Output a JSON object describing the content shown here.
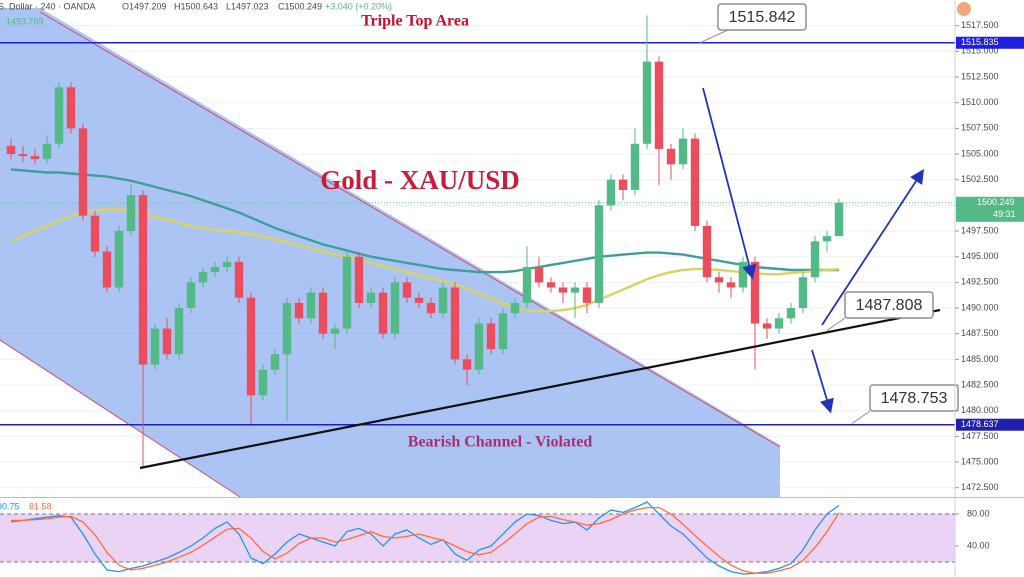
{
  "header": {
    "symbol": "S. Dollar · 240 · OANDA",
    "open": "O1497.209",
    "high": "H1500.643",
    "low": "L1497.023",
    "close": "C1500.249",
    "change": "+3.040 (+0.20%)",
    "prev_label": "1493.769"
  },
  "chart_data": [
    {
      "type": "candlestick",
      "title": "Gold - XAU/USD",
      "open": [
        1505.8,
        1505.0,
        1504.8,
        1504.5,
        1506.0,
        1511.5,
        1507.5,
        1499.0,
        1495.5,
        1492.0,
        1497.5,
        1501.0,
        1484.5,
        1488.0,
        1485.5,
        1490.0,
        1492.5,
        1493.5,
        1494.0,
        1494.5,
        1491.0,
        1481.5,
        1484.0,
        1485.5,
        1490.5,
        1489.0,
        1491.5,
        1487.5,
        1488.0,
        1495.0,
        1490.5,
        1491.5,
        1487.5,
        1492.5,
        1491.0,
        1490.5,
        1489.5,
        1492.0,
        1485.0,
        1484.0,
        1488.5,
        1486.0,
        1489.5,
        1490.5,
        1494.0,
        1492.5,
        1492.0,
        1491.5,
        1492.0,
        1490.5,
        1500.0,
        1502.5,
        1501.5,
        1506.0,
        1514.0,
        1505.5,
        1504.0,
        1506.5,
        1498.0,
        1493.0,
        1492.5,
        1492.0,
        1494.5,
        1488.5,
        1488.0,
        1489.0,
        1490.0,
        1493.0,
        1496.5,
        1497.0
      ],
      "high": [
        1506.5,
        1505.8,
        1505.5,
        1506.8,
        1512.0,
        1512.0,
        1508.0,
        1499.5,
        1496.0,
        1498.0,
        1502.0,
        1501.5,
        1488.5,
        1489.0,
        1490.5,
        1493.0,
        1494.0,
        1494.5,
        1495.0,
        1495.0,
        1491.5,
        1484.5,
        1486.0,
        1491.0,
        1491.0,
        1492.0,
        1492.0,
        1488.5,
        1495.5,
        1495.5,
        1492.0,
        1492.0,
        1493.0,
        1493.0,
        1491.5,
        1491.0,
        1492.5,
        1492.5,
        1485.5,
        1489.0,
        1489.0,
        1490.0,
        1491.0,
        1496.0,
        1495.0,
        1493.0,
        1492.5,
        1492.5,
        1492.5,
        1500.5,
        1503.0,
        1503.0,
        1507.5,
        1518.5,
        1514.5,
        1506.0,
        1507.5,
        1507.0,
        1498.5,
        1493.5,
        1493.0,
        1495.0,
        1495.0,
        1489.0,
        1489.5,
        1490.5,
        1493.5,
        1497.0,
        1497.5,
        1500.643
      ],
      "low": [
        1504.5,
        1504.2,
        1504.0,
        1504.0,
        1505.5,
        1507.0,
        1498.5,
        1495.0,
        1491.5,
        1491.5,
        1497.0,
        1474.5,
        1484.0,
        1485.0,
        1485.0,
        1489.5,
        1492.0,
        1493.0,
        1493.5,
        1490.5,
        1478.7,
        1481.0,
        1483.5,
        1479.0,
        1488.5,
        1488.5,
        1487.0,
        1486.0,
        1487.5,
        1490.0,
        1490.0,
        1487.0,
        1487.0,
        1490.5,
        1490.0,
        1489.0,
        1489.0,
        1484.5,
        1482.5,
        1483.5,
        1485.5,
        1485.5,
        1489.0,
        1490.0,
        1492.0,
        1491.5,
        1490.5,
        1489.0,
        1489.5,
        1490.0,
        1499.5,
        1500.5,
        1501.0,
        1505.5,
        1502.0,
        1502.5,
        1503.5,
        1497.5,
        1492.5,
        1491.5,
        1491.0,
        1491.5,
        1484.0,
        1487.0,
        1487.5,
        1488.5,
        1489.5,
        1492.5,
        1495.5,
        1497.023
      ],
      "close": [
        1505.0,
        1504.8,
        1504.5,
        1506.0,
        1511.5,
        1507.5,
        1499.0,
        1495.5,
        1492.0,
        1497.5,
        1501.0,
        1484.5,
        1488.0,
        1485.5,
        1490.0,
        1492.5,
        1493.5,
        1494.0,
        1494.5,
        1491.0,
        1481.5,
        1484.0,
        1485.5,
        1490.5,
        1489.0,
        1491.5,
        1487.5,
        1488.0,
        1495.0,
        1490.5,
        1491.5,
        1487.5,
        1492.5,
        1491.0,
        1490.5,
        1489.5,
        1492.0,
        1485.0,
        1484.0,
        1488.5,
        1486.0,
        1489.5,
        1490.5,
        1494.0,
        1492.5,
        1492.0,
        1491.5,
        1492.0,
        1490.5,
        1500.0,
        1502.5,
        1501.5,
        1506.0,
        1514.0,
        1505.5,
        1504.0,
        1506.5,
        1498.0,
        1493.0,
        1492.5,
        1492.0,
        1494.5,
        1488.5,
        1488.0,
        1489.0,
        1490.0,
        1493.0,
        1496.5,
        1497.0,
        1500.249
      ],
      "up_color": "#53b987",
      "down_color": "#eb4d5c",
      "overlays": [
        {
          "color": "#3f9e9a",
          "values": [
            1503.5,
            1503.4,
            1503.3,
            1503.2,
            1503.2,
            1503.1,
            1503.0,
            1502.9,
            1502.8,
            1502.6,
            1502.4,
            1502.1,
            1501.8,
            1501.5,
            1501.2,
            1500.9,
            1500.5,
            1500.1,
            1499.7,
            1499.3,
            1498.8,
            1498.3,
            1497.8,
            1497.4,
            1497.0,
            1496.6,
            1496.2,
            1495.9,
            1495.6,
            1495.3,
            1495.0,
            1494.8,
            1494.6,
            1494.4,
            1494.2,
            1494.0,
            1493.8,
            1493.7,
            1493.6,
            1493.5,
            1493.5,
            1493.5,
            1493.6,
            1493.8,
            1494.0,
            1494.2,
            1494.4,
            1494.6,
            1494.8,
            1495.0,
            1495.1,
            1495.2,
            1495.3,
            1495.4,
            1495.4,
            1495.3,
            1495.2,
            1495.0,
            1494.8,
            1494.6,
            1494.4,
            1494.2,
            1494.0,
            1493.9,
            1493.8,
            1493.7,
            1493.7,
            1493.7,
            1493.7,
            1493.7
          ]
        },
        {
          "color": "#d9d45e",
          "values": [
            1496.5,
            1497.0,
            1497.5,
            1498.0,
            1498.5,
            1499.0,
            1499.3,
            1499.5,
            1499.6,
            1499.6,
            1499.5,
            1499.2,
            1498.9,
            1498.6,
            1498.3,
            1498.0,
            1497.8,
            1497.6,
            1497.5,
            1497.4,
            1497.2,
            1497.0,
            1496.7,
            1496.4,
            1496.1,
            1495.8,
            1495.5,
            1495.2,
            1495.0,
            1494.7,
            1494.4,
            1494.1,
            1493.8,
            1493.5,
            1493.2,
            1492.9,
            1492.6,
            1492.3,
            1491.9,
            1491.4,
            1490.9,
            1490.4,
            1490.0,
            1489.8,
            1489.7,
            1489.7,
            1489.8,
            1490.0,
            1490.3,
            1490.8,
            1491.3,
            1491.8,
            1492.3,
            1492.8,
            1493.2,
            1493.5,
            1493.7,
            1493.8,
            1493.8,
            1493.7,
            1493.6,
            1493.5,
            1493.4,
            1493.3,
            1493.3,
            1493.4,
            1493.5,
            1493.6,
            1493.7,
            1493.8
          ]
        }
      ],
      "ylim": [
        1471.5,
        1520
      ],
      "yticks": [
        {
          "value": 1472.5,
          "label": "1472.500"
        },
        {
          "value": 1475,
          "label": "1475.000"
        },
        {
          "value": 1477.5,
          "label": "1477.500"
        },
        {
          "value": 1480,
          "label": "1480.000"
        },
        {
          "value": 1482.5,
          "label": "1482.500"
        },
        {
          "value": 1485,
          "label": "1485.000"
        },
        {
          "value": 1487.5,
          "label": "1487.500"
        },
        {
          "value": 1490,
          "label": "1490.000"
        },
        {
          "value": 1492.5,
          "label": "1492.500"
        },
        {
          "value": 1495,
          "label": "1495.000"
        },
        {
          "value": 1497.5,
          "label": "1497.500"
        },
        {
          "value": 1500,
          "label": "1500.000"
        },
        {
          "value": 1502.5,
          "label": "1502.500"
        },
        {
          "value": 1505,
          "label": "1505.000"
        },
        {
          "value": 1507.5,
          "label": "1507.500"
        },
        {
          "value": 1510,
          "label": "1510.000"
        },
        {
          "value": 1512.5,
          "label": "1512.500"
        },
        {
          "value": 1515,
          "label": "1515.000"
        },
        {
          "value": 1517.5,
          "label": "1517.500"
        }
      ],
      "grid": true,
      "levels": [
        {
          "value": 1515.835,
          "label": "1515.835",
          "color": "#1f1fe0"
        },
        {
          "value": 1478.637,
          "label": "1478.637",
          "color": "#1f1fb0"
        }
      ],
      "last_price": {
        "value": 1500.249,
        "label": "1500.249",
        "color": "#53b987"
      },
      "countdown": "49:31",
      "callouts": [
        {
          "value": 1515.842,
          "label": "1515.842"
        },
        {
          "value": 1487.808,
          "label": "1487.808"
        },
        {
          "value": 1478.753,
          "label": "1478.753"
        }
      ],
      "annotations": [
        "Triple Top Area",
        "Bearish Channel - Violated"
      ]
    },
    {
      "type": "line",
      "series": [
        {
          "color": "#2196f3",
          "values": [
            70,
            72,
            74,
            76,
            78,
            76,
            55,
            30,
            10,
            8,
            12,
            15,
            20,
            25,
            32,
            40,
            50,
            62,
            70,
            55,
            25,
            18,
            30,
            45,
            55,
            50,
            45,
            40,
            58,
            62,
            55,
            40,
            55,
            60,
            50,
            42,
            48,
            30,
            22,
            35,
            40,
            55,
            70,
            80,
            78,
            72,
            68,
            70,
            60,
            75,
            85,
            82,
            88,
            95,
            80,
            65,
            55,
            40,
            25,
            15,
            8,
            5,
            6,
            8,
            12,
            18,
            35,
            60,
            80,
            90.75
          ]
        },
        {
          "color": "#ff6d3a",
          "values": [
            72,
            72,
            73,
            74,
            76,
            77,
            70,
            54,
            32,
            16,
            10,
            12,
            16,
            20,
            26,
            32,
            41,
            51,
            61,
            62,
            50,
            33,
            24,
            31,
            43,
            50,
            50,
            45,
            48,
            53,
            58,
            52,
            50,
            52,
            55,
            51,
            47,
            40,
            33,
            29,
            32,
            43,
            55,
            68,
            76,
            77,
            73,
            70,
            66,
            68,
            73,
            80,
            85,
            88,
            88,
            80,
            67,
            53,
            40,
            27,
            16,
            9,
            6,
            6,
            9,
            13,
            22,
            38,
            58,
            81.58
          ]
        }
      ],
      "legend_values": [
        "90.75",
        "81.58"
      ],
      "band": [
        20,
        80
      ],
      "ylim": [
        0,
        100
      ],
      "yticks": [
        {
          "value": 80,
          "label": "80.00"
        },
        {
          "value": 40,
          "label": "40.00"
        }
      ]
    }
  ]
}
